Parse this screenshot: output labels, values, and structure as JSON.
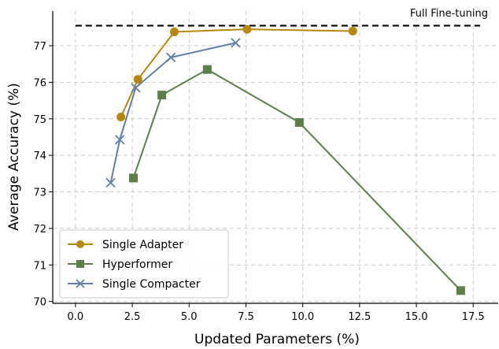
{
  "chart_data": {
    "type": "line",
    "xlabel": "Updated Parameters (%)",
    "ylabel": "Average Accuracy (%)",
    "xlim": [
      -1.0,
      18.6
    ],
    "ylim": [
      69.95,
      77.95
    ],
    "xticks": [
      0.0,
      2.5,
      5.0,
      7.5,
      10.0,
      12.5,
      15.0,
      17.5
    ],
    "xtick_labels": [
      "0.0",
      "2.5",
      "5.0",
      "7.5",
      "10.0",
      "12.5",
      "15.0",
      "17.5"
    ],
    "yticks": [
      70,
      71,
      72,
      73,
      74,
      75,
      76,
      77
    ],
    "ytick_labels": [
      "70",
      "71",
      "72",
      "73",
      "74",
      "75",
      "76",
      "77"
    ],
    "grid": true,
    "legend_position": "lower-left",
    "reference_line": {
      "label": "Full Fine-tuning",
      "y": 77.55,
      "x_range": [
        0.0,
        17.8
      ],
      "style": "dashed",
      "color": "#000000"
    },
    "series": [
      {
        "name": "Single Adapter",
        "marker": "circle",
        "color": "#b8860b",
        "x": [
          2.0,
          2.75,
          4.35,
          7.55,
          12.2
        ],
        "y": [
          75.05,
          76.08,
          77.38,
          77.45,
          77.4
        ]
      },
      {
        "name": "Hyperformer",
        "marker": "square",
        "color": "#5b7f47",
        "x": [
          2.55,
          3.8,
          5.8,
          9.85,
          16.95
        ],
        "y": [
          73.38,
          75.65,
          76.35,
          74.9,
          70.3
        ]
      },
      {
        "name": "Single Compacter",
        "marker": "x",
        "color": "#5b7fa6",
        "x": [
          1.55,
          1.95,
          2.65,
          4.2,
          7.05
        ],
        "y": [
          73.25,
          74.43,
          75.85,
          76.68,
          77.08
        ]
      }
    ]
  }
}
